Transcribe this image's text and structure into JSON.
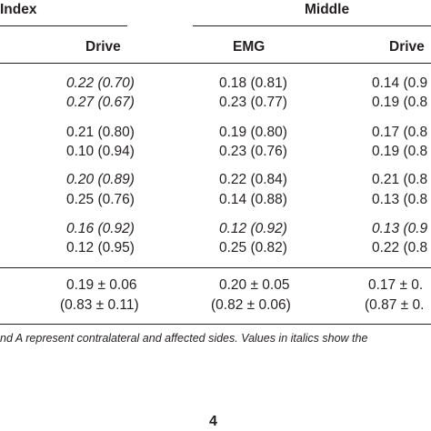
{
  "header": {
    "group1": "Index",
    "group2": "Middle",
    "col_index_drive": "Drive",
    "col_middle_emg": "EMG",
    "col_middle_drive": "Drive"
  },
  "rows": [
    {
      "index_drive": "0.22 (0.70)",
      "middle_emg": "0.18 (0.81)",
      "middle_drive": "0.14 (0.9",
      "italic_index": true
    },
    {
      "index_drive": "0.27 (0.67)",
      "middle_emg": "0.23 (0.77)",
      "middle_drive": "0.19 (0.8",
      "italic_index": true
    },
    {
      "index_drive": "0.21 (0.80)",
      "middle_emg": "0.19 (0.80)",
      "middle_drive": "0.17 (0.8",
      "italic_index": false
    },
    {
      "index_drive": "0.10 (0.94)",
      "middle_emg": "0.23 (0.76)",
      "middle_drive": "0.19 (0.8",
      "italic_index": false
    },
    {
      "index_drive": "0.20 (0.89)",
      "middle_emg": "0.22 (0.84)",
      "middle_drive": "0.21 (0.8",
      "italic_index": true
    },
    {
      "index_drive": "0.25 (0.76)",
      "middle_emg": "0.14 (0.88)",
      "middle_drive": "0.13 (0.8",
      "italic_index": false
    },
    {
      "index_drive": "0.16 (0.92)",
      "middle_emg": "0.12 (0.92)",
      "middle_drive": "0.13 (0.9",
      "italic_index": true,
      "italic_middle": true
    },
    {
      "index_drive": "0.12 (0.95)",
      "middle_emg": "0.25 (0.82)",
      "middle_drive": "0.22 (0.8",
      "italic_index": false
    }
  ],
  "summary": {
    "mean_index_drive": "0.19 ± 0.06",
    "mean_middle_emg": "0.20 ± 0.05",
    "mean_middle_drive": "0.17 ± 0.",
    "r_index_drive": "(0.83 ± 0.11)",
    "r_middle_emg": "(0.82 ± 0.06)",
    "r_middle_drive": "(0.87 ± 0."
  },
  "footnote": "nd A represent contralateral and affected sides. Values in italics show the",
  "page_number": "4"
}
